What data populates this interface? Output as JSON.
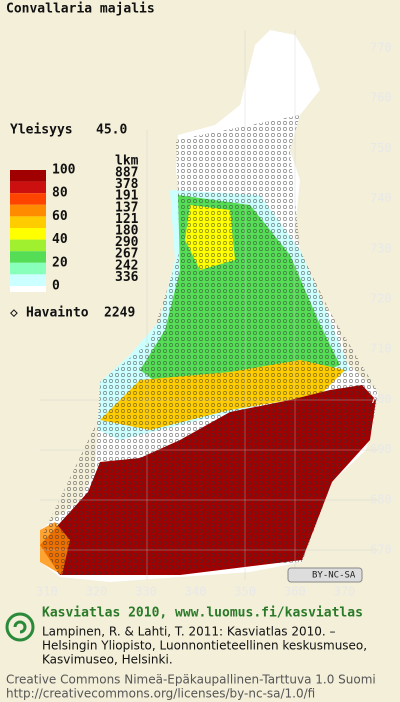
{
  "title": "Convallaria majalis",
  "frequency": {
    "label": "Yleisyys",
    "value": "45.0"
  },
  "legend": {
    "scale_labels": [
      "100",
      "80",
      "60",
      "40",
      "20",
      "0"
    ],
    "count_header": "lkm",
    "counts": [
      887,
      378,
      191,
      137,
      121,
      180,
      290,
      267,
      242,
      336
    ],
    "colors": [
      "#a00000",
      "#cc1010",
      "#ff4400",
      "#ff8c00",
      "#ffcc00",
      "#ffff00",
      "#a0f030",
      "#55dd55",
      "#88ffbb",
      "#ccffff"
    ]
  },
  "observations": {
    "label": "Havainto",
    "value": 2249
  },
  "grid": {
    "y_labels": [
      "770",
      "760",
      "750",
      "740",
      "730",
      "720",
      "710",
      "700",
      "690",
      "680",
      "670"
    ],
    "x_labels": [
      "310",
      "320",
      "330",
      "340",
      "350",
      "360",
      "370"
    ]
  },
  "license_badge": "BY-NC-SA",
  "footer": {
    "atlas": "Kasviatlas 2010, www.luomus.fi/kasviatlas",
    "citation": [
      "Lampinen, R. & Lahti, T. 2011: Kasviatlas 2010. –",
      "Helsingin Yliopisto, Luonnontieteellinen keskusmuseo,",
      "Kasvimuseo, Helsinki."
    ],
    "license": [
      "Creative Commons Nimeä-Epäkaupallinen-Tarttuva 1.0 Suomi",
      "http://creativecommons.org/licenses/by-nc-sa/1.0/fi"
    ]
  }
}
